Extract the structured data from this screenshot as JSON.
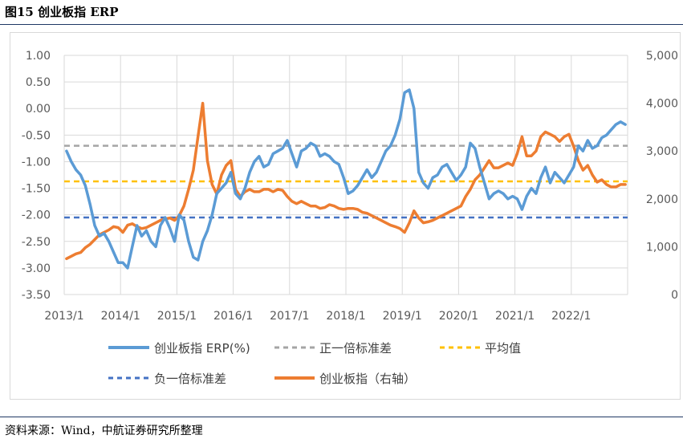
{
  "figure": {
    "title": "图15  创业板指 ERP"
  },
  "source": "资料来源：Wind，中航证券研究所整理",
  "colors": {
    "erp": "#5B9BD5",
    "plus_std": "#A5A5A5",
    "mean": "#FFC000",
    "minus_std": "#4472C4",
    "index": "#ED7D31",
    "grid": "#D9D9D9",
    "rule": "#1F3864"
  },
  "chart_data": {
    "type": "line",
    "title": "",
    "grid": true,
    "legend_position": "bottom",
    "x_ticks": [
      "2013/1",
      "2014/1",
      "2015/1",
      "2016/1",
      "2017/1",
      "2018/1",
      "2019/1",
      "2020/1",
      "2021/1",
      "2022/1"
    ],
    "x_range": [
      "2013/1",
      "2022/12"
    ],
    "y_left": {
      "range": [
        -3.5,
        1.0
      ],
      "ticks": [
        "1.00",
        "0.50",
        "0.00",
        "-0.50",
        "-1.00",
        "-1.50",
        "-2.00",
        "-2.50",
        "-3.00",
        "-3.50"
      ]
    },
    "y_right": {
      "range": [
        0,
        5000
      ],
      "ticks": [
        "5,000",
        "4,000",
        "3,000",
        "2,000",
        "1,000",
        "0"
      ]
    },
    "legend": {
      "erp": "创业板指 ERP(%)",
      "plus_std": "正一倍标准差",
      "mean": "平均值",
      "minus_std": "负一倍标准差",
      "index": "创业板指（右轴）"
    },
    "reference_lines": {
      "plus_std": -0.7,
      "mean": -1.37,
      "minus_std": -2.05
    },
    "series": [
      {
        "key": "erp",
        "axis": "left",
        "x": [
          "2013-01",
          "2013-02",
          "2013-03",
          "2013-04",
          "2013-05",
          "2013-06",
          "2013-07",
          "2013-08",
          "2013-09",
          "2013-10",
          "2013-11",
          "2013-12",
          "2014-01",
          "2014-02",
          "2014-03",
          "2014-04",
          "2014-05",
          "2014-06",
          "2014-07",
          "2014-08",
          "2014-09",
          "2014-10",
          "2014-11",
          "2014-12",
          "2015-01",
          "2015-02",
          "2015-03",
          "2015-04",
          "2015-05",
          "2015-06",
          "2015-07",
          "2015-08",
          "2015-09",
          "2015-10",
          "2015-11",
          "2015-12",
          "2016-01",
          "2016-02",
          "2016-03",
          "2016-04",
          "2016-05",
          "2016-06",
          "2016-07",
          "2016-08",
          "2016-09",
          "2016-10",
          "2016-11",
          "2016-12",
          "2017-01",
          "2017-02",
          "2017-03",
          "2017-04",
          "2017-05",
          "2017-06",
          "2017-07",
          "2017-08",
          "2017-09",
          "2017-10",
          "2017-11",
          "2017-12",
          "2018-01",
          "2018-02",
          "2018-03",
          "2018-04",
          "2018-05",
          "2018-06",
          "2018-07",
          "2018-08",
          "2018-09",
          "2018-10",
          "2018-11",
          "2018-12",
          "2019-01",
          "2019-02",
          "2019-03",
          "2019-04",
          "2019-05",
          "2019-06",
          "2019-07",
          "2019-08",
          "2019-09",
          "2019-10",
          "2019-11",
          "2019-12",
          "2020-01",
          "2020-02",
          "2020-03",
          "2020-04",
          "2020-05",
          "2020-06",
          "2020-07",
          "2020-08",
          "2020-09",
          "2020-10",
          "2020-11",
          "2020-12",
          "2021-01",
          "2021-02",
          "2021-03",
          "2021-04",
          "2021-05",
          "2021-06",
          "2021-07",
          "2021-08",
          "2021-09",
          "2021-10",
          "2021-11",
          "2021-12",
          "2022-01",
          "2022-02",
          "2022-03",
          "2022-04",
          "2022-05",
          "2022-06",
          "2022-07",
          "2022-08",
          "2022-09",
          "2022-10",
          "2022-11",
          "2022-12"
        ],
        "y": [
          -0.8,
          -1.0,
          -1.15,
          -1.25,
          -1.45,
          -1.8,
          -2.2,
          -2.4,
          -2.35,
          -2.5,
          -2.7,
          -2.9,
          -2.9,
          -3.0,
          -2.6,
          -2.2,
          -2.4,
          -2.3,
          -2.5,
          -2.6,
          -2.2,
          -2.05,
          -2.25,
          -2.5,
          -2.0,
          -2.1,
          -2.5,
          -2.8,
          -2.85,
          -2.5,
          -2.3,
          -2.0,
          -1.6,
          -1.5,
          -1.4,
          -1.2,
          -1.6,
          -1.7,
          -1.5,
          -1.2,
          -1.0,
          -0.9,
          -1.1,
          -1.05,
          -0.85,
          -0.8,
          -0.75,
          -0.6,
          -0.85,
          -1.1,
          -0.8,
          -0.75,
          -0.65,
          -0.7,
          -0.9,
          -0.85,
          -0.9,
          -1.0,
          -1.05,
          -1.3,
          -1.6,
          -1.55,
          -1.45,
          -1.3,
          -1.15,
          -1.3,
          -1.2,
          -1.0,
          -0.8,
          -0.7,
          -0.5,
          -0.2,
          0.3,
          0.35,
          0.0,
          -1.2,
          -1.4,
          -1.5,
          -1.3,
          -1.25,
          -1.1,
          -1.05,
          -1.2,
          -1.35,
          -1.25,
          -1.1,
          -0.65,
          -0.75,
          -1.1,
          -1.4,
          -1.7,
          -1.6,
          -1.55,
          -1.6,
          -1.7,
          -1.65,
          -1.7,
          -1.9,
          -1.65,
          -1.5,
          -1.6,
          -1.3,
          -1.1,
          -1.4,
          -1.2,
          -1.3,
          -1.4,
          -1.25,
          -1.1,
          -0.7,
          -0.8,
          -0.6,
          -0.75,
          -0.7,
          -0.55,
          -0.5,
          -0.4,
          -0.3,
          -0.25,
          -0.3
        ]
      },
      {
        "key": "index",
        "axis": "right",
        "x": [
          "2013-01",
          "2013-02",
          "2013-03",
          "2013-04",
          "2013-05",
          "2013-06",
          "2013-07",
          "2013-08",
          "2013-09",
          "2013-10",
          "2013-11",
          "2013-12",
          "2014-01",
          "2014-02",
          "2014-03",
          "2014-04",
          "2014-05",
          "2014-06",
          "2014-07",
          "2014-08",
          "2014-09",
          "2014-10",
          "2014-11",
          "2014-12",
          "2015-01",
          "2015-02",
          "2015-03",
          "2015-04",
          "2015-05",
          "2015-06",
          "2015-07",
          "2015-08",
          "2015-09",
          "2015-10",
          "2015-11",
          "2015-12",
          "2016-01",
          "2016-02",
          "2016-03",
          "2016-04",
          "2016-05",
          "2016-06",
          "2016-07",
          "2016-08",
          "2016-09",
          "2016-10",
          "2016-11",
          "2016-12",
          "2017-01",
          "2017-02",
          "2017-03",
          "2017-04",
          "2017-05",
          "2017-06",
          "2017-07",
          "2017-08",
          "2017-09",
          "2017-10",
          "2017-11",
          "2017-12",
          "2018-01",
          "2018-02",
          "2018-03",
          "2018-04",
          "2018-05",
          "2018-06",
          "2018-07",
          "2018-08",
          "2018-09",
          "2018-10",
          "2018-11",
          "2018-12",
          "2019-01",
          "2019-02",
          "2019-03",
          "2019-04",
          "2019-05",
          "2019-06",
          "2019-07",
          "2019-08",
          "2019-09",
          "2019-10",
          "2019-11",
          "2019-12",
          "2020-01",
          "2020-02",
          "2020-03",
          "2020-04",
          "2020-05",
          "2020-06",
          "2020-07",
          "2020-08",
          "2020-09",
          "2020-10",
          "2020-11",
          "2020-12",
          "2021-01",
          "2021-02",
          "2021-03",
          "2021-04",
          "2021-05",
          "2021-06",
          "2021-07",
          "2021-08",
          "2021-09",
          "2021-10",
          "2021-11",
          "2021-12",
          "2022-01",
          "2022-02",
          "2022-03",
          "2022-04",
          "2022-05",
          "2022-06",
          "2022-07",
          "2022-08",
          "2022-09",
          "2022-10",
          "2022-11",
          "2022-12"
        ],
        "y": [
          750,
          800,
          850,
          880,
          980,
          1050,
          1150,
          1250,
          1300,
          1350,
          1420,
          1400,
          1300,
          1450,
          1480,
          1420,
          1380,
          1400,
          1450,
          1500,
          1550,
          1580,
          1600,
          1550,
          1650,
          1850,
          2200,
          2600,
          3300,
          4000,
          2800,
          2300,
          2100,
          2500,
          2700,
          2800,
          2200,
          2050,
          2150,
          2200,
          2150,
          2150,
          2200,
          2200,
          2150,
          2200,
          2180,
          2050,
          1950,
          1900,
          1950,
          1900,
          1850,
          1850,
          1800,
          1820,
          1880,
          1850,
          1800,
          1780,
          1800,
          1800,
          1780,
          1720,
          1700,
          1650,
          1600,
          1550,
          1500,
          1450,
          1420,
          1380,
          1300,
          1500,
          1750,
          1600,
          1500,
          1520,
          1550,
          1600,
          1650,
          1700,
          1750,
          1800,
          1850,
          2050,
          2200,
          2400,
          2500,
          2650,
          2800,
          2650,
          2650,
          2700,
          2750,
          2700,
          2950,
          3300,
          2900,
          2900,
          3000,
          3300,
          3400,
          3350,
          3300,
          3200,
          3300,
          3350,
          3100,
          2800,
          2600,
          2700,
          2500,
          2350,
          2400,
          2300,
          2250,
          2250,
          2300,
          2300
        ]
      }
    ]
  }
}
